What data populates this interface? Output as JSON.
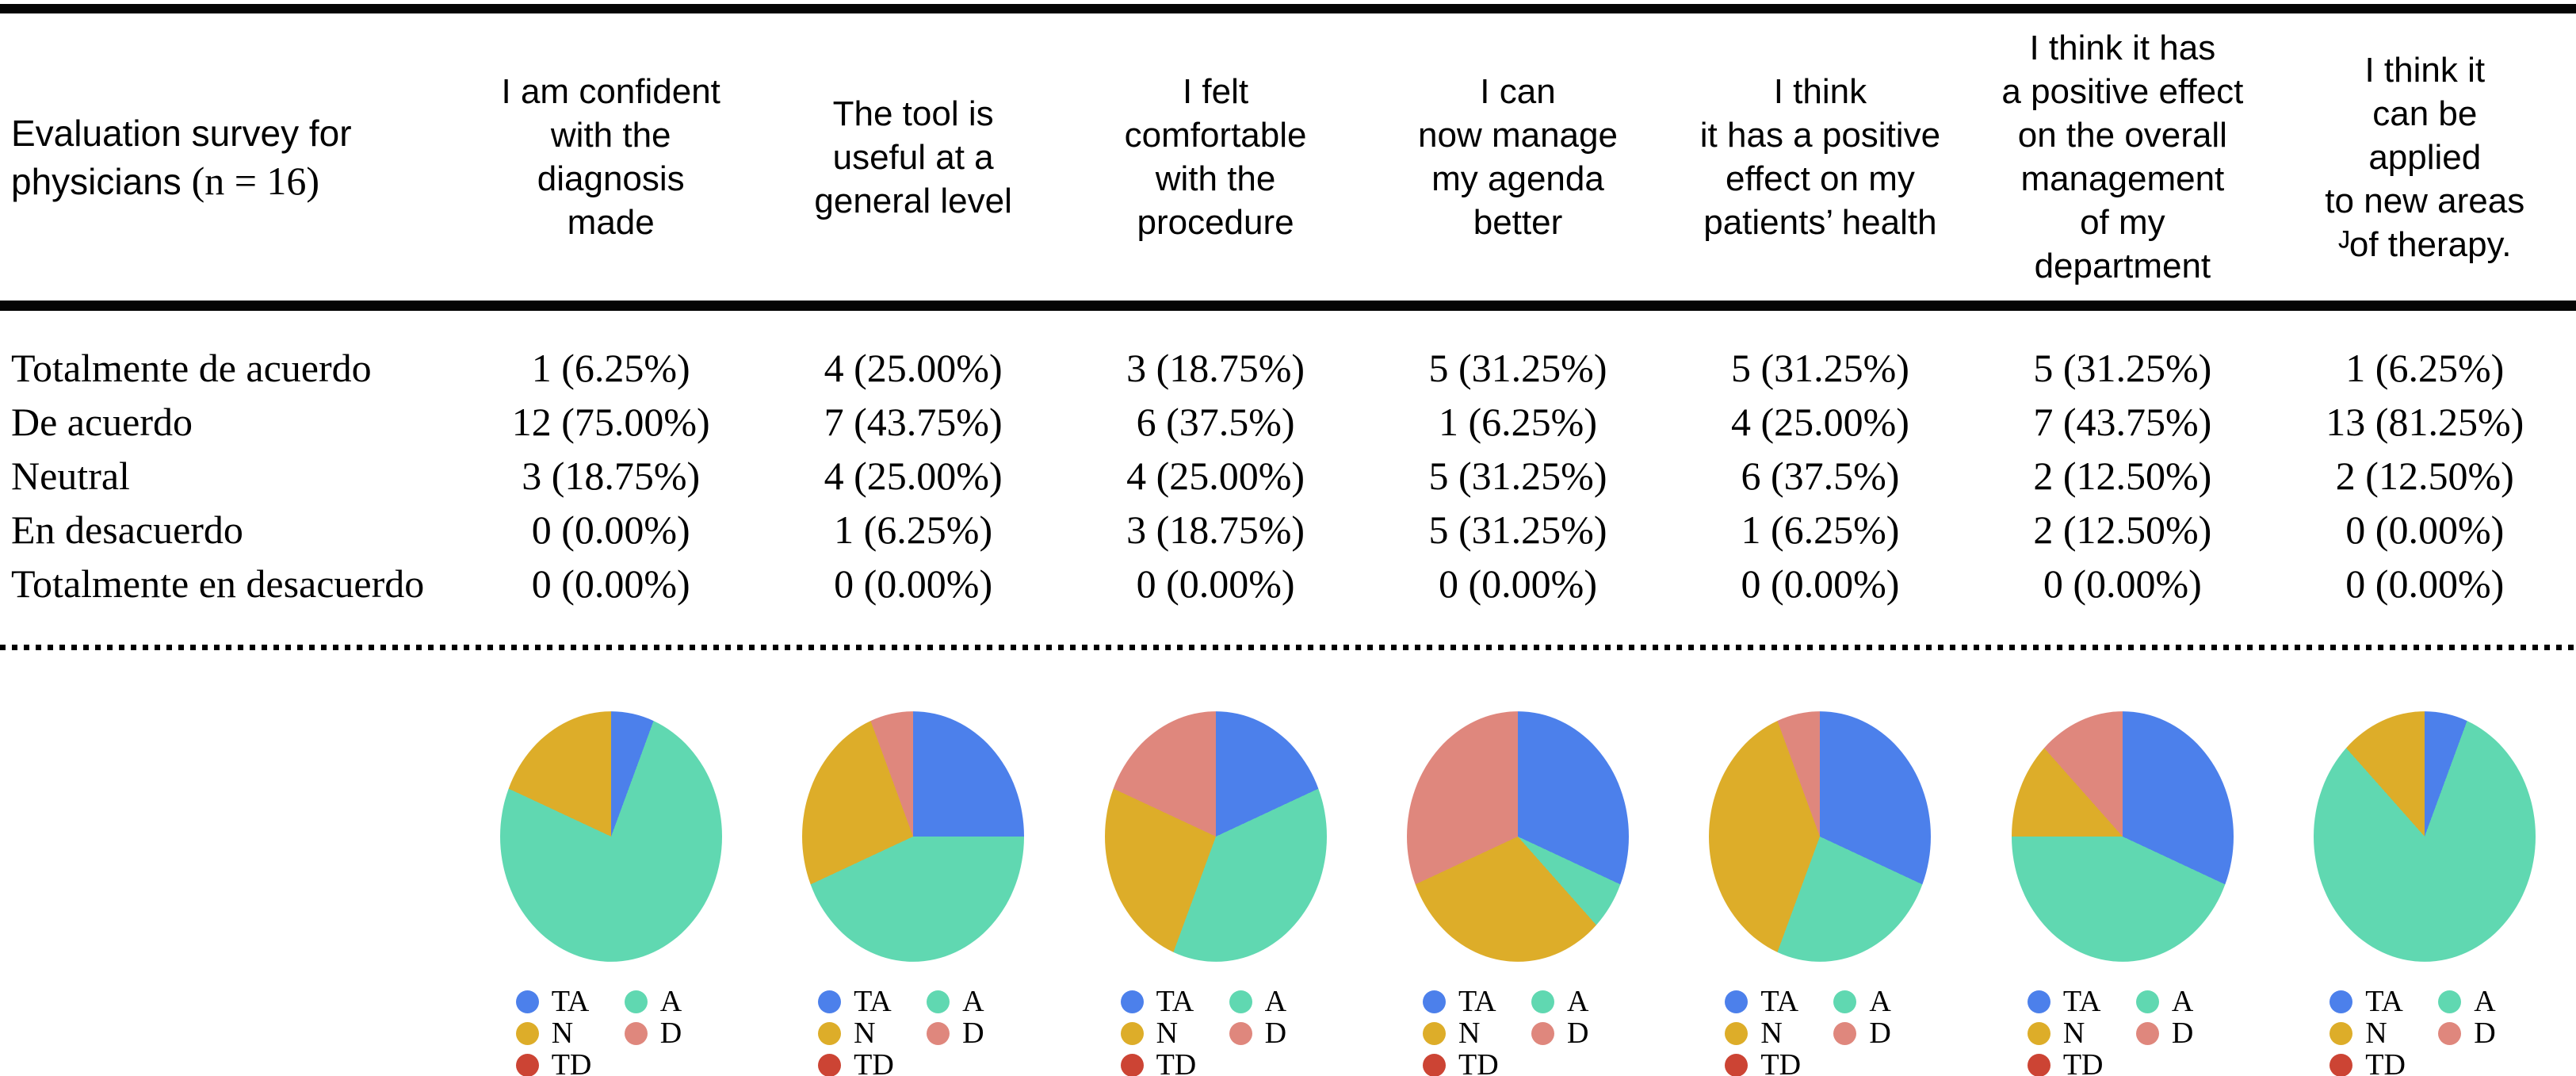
{
  "title": {
    "line1": "Evaluation survey for",
    "line2_main": "physicians ",
    "line2_n": "(n = 16)"
  },
  "row_labels": [
    "Totalmente de acuerdo",
    "De acuerdo",
    "Neutral",
    "En desacuerdo",
    "Totalmente en desacuerdo"
  ],
  "columns": [
    {
      "header_lines": [
        "I am confident",
        "with the",
        "diagnosis",
        "made"
      ],
      "values": [
        "1 (6.25%)",
        "12 (75.00%)",
        "3 (18.75%)",
        "0 (0.00%)",
        "0 (0.00%)"
      ]
    },
    {
      "header_lines": [
        "The tool is",
        "useful at a",
        "general level"
      ],
      "values": [
        "4 (25.00%)",
        "7 (43.75%)",
        "4 (25.00%)",
        "1 (6.25%)",
        "0 (0.00%)"
      ]
    },
    {
      "header_lines": [
        "I felt",
        "comfortable",
        "with the",
        "procedure"
      ],
      "values": [
        "3 (18.75%)",
        "6 (37.5%)",
        "4 (25.00%)",
        "3 (18.75%)",
        "0 (0.00%)"
      ]
    },
    {
      "header_lines": [
        "I can",
        "now manage",
        "my agenda",
        "better"
      ],
      "values": [
        "5 (31.25%)",
        "1 (6.25%)",
        "5 (31.25%)",
        "5 (31.25%)",
        "0 (0.00%)"
      ]
    },
    {
      "header_lines": [
        "I think",
        "it has a positive",
        "effect on my",
        "patients’ health"
      ],
      "values": [
        "5 (31.25%)",
        "4 (25.00%)",
        "6 (37.5%)",
        "1 (6.25%)",
        "0 (0.00%)"
      ]
    },
    {
      "header_lines": [
        "I think it has",
        "a positive effect",
        "on the overall",
        "management",
        "of my",
        "department"
      ],
      "values": [
        "5 (31.25%)",
        "7 (43.75%)",
        "2 (12.50%)",
        "2 (12.50%)",
        "0 (0.00%)"
      ]
    },
    {
      "header_lines": [
        "I think it",
        "can be",
        "applied",
        "to new areas",
        "ᴶof therapy."
      ],
      "values": [
        "1 (6.25%)",
        "13 (81.25%)",
        "2 (12.50%)",
        "0 (0.00%)",
        "0 (0.00%)"
      ]
    }
  ],
  "legend_items": [
    {
      "code": "TA",
      "label": "TA"
    },
    {
      "code": "A",
      "label": "A"
    },
    {
      "code": "N",
      "label": "N"
    },
    {
      "code": "D",
      "label": "D"
    },
    {
      "code": "TD",
      "label": "TD"
    }
  ],
  "colors": {
    "TA": "#4C80EB",
    "A": "#60D8B1",
    "N": "#DDAD29",
    "D": "#DF877D",
    "TD": "#CC4434"
  },
  "chart_data": [
    {
      "type": "pie",
      "column": "I am confident with the diagnosis made",
      "labels": [
        "TA",
        "A",
        "N",
        "D",
        "TD"
      ],
      "counts": [
        1,
        12,
        3,
        0,
        0
      ],
      "percents": [
        6.25,
        75.0,
        18.75,
        0.0,
        0.0
      ]
    },
    {
      "type": "pie",
      "column": "The tool is useful at a general level",
      "labels": [
        "TA",
        "A",
        "N",
        "D",
        "TD"
      ],
      "counts": [
        4,
        7,
        4,
        1,
        0
      ],
      "percents": [
        25.0,
        43.75,
        25.0,
        6.25,
        0.0
      ]
    },
    {
      "type": "pie",
      "column": "I felt comfortable with the procedure",
      "labels": [
        "TA",
        "A",
        "N",
        "D",
        "TD"
      ],
      "counts": [
        3,
        6,
        4,
        3,
        0
      ],
      "percents": [
        18.75,
        37.5,
        25.0,
        18.75,
        0.0
      ]
    },
    {
      "type": "pie",
      "column": "I can now manage my agenda better",
      "labels": [
        "TA",
        "A",
        "N",
        "D",
        "TD"
      ],
      "counts": [
        5,
        1,
        5,
        5,
        0
      ],
      "percents": [
        31.25,
        6.25,
        31.25,
        31.25,
        0.0
      ]
    },
    {
      "type": "pie",
      "column": "I think it has a positive effect on my patients’ health",
      "labels": [
        "TA",
        "A",
        "N",
        "D",
        "TD"
      ],
      "counts": [
        5,
        4,
        6,
        1,
        0
      ],
      "percents": [
        31.25,
        25.0,
        37.5,
        6.25,
        0.0
      ]
    },
    {
      "type": "pie",
      "column": "I think it has a positive effect on the overall management of my department",
      "labels": [
        "TA",
        "A",
        "N",
        "D",
        "TD"
      ],
      "counts": [
        5,
        7,
        2,
        2,
        0
      ],
      "percents": [
        31.25,
        43.75,
        12.5,
        12.5,
        0.0
      ]
    },
    {
      "type": "pie",
      "column": "I think it can be applied to new areas of therapy.",
      "labels": [
        "TA",
        "A",
        "N",
        "D",
        "TD"
      ],
      "counts": [
        1,
        13,
        2,
        0,
        0
      ],
      "percents": [
        6.25,
        81.25,
        12.5,
        0.0,
        0.0
      ]
    }
  ]
}
